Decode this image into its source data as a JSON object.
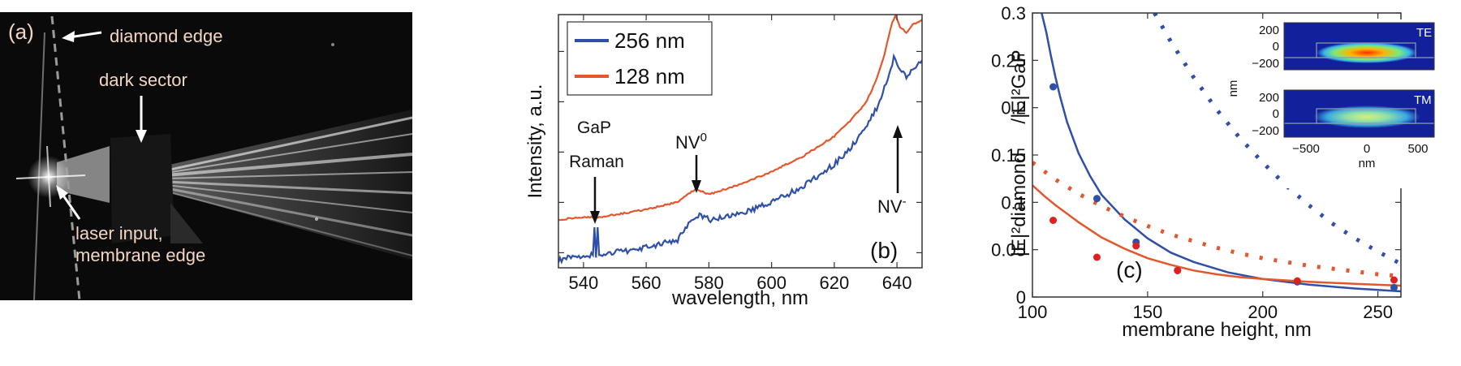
{
  "panel_a": {
    "label": "(a)",
    "annotations": {
      "diamond_edge": "diamond edge",
      "dark_sector": "dark sector",
      "laser_input_line1": "laser input,",
      "laser_input_line2": "membrane edge"
    },
    "colors": {
      "background": "#0a0a0a",
      "annotation": "#f2d6c4"
    }
  },
  "panel_b": {
    "label": "(b)",
    "annotations": {
      "gap_line1": "GaP",
      "gap_line2": "Raman",
      "nv0_main": "NV",
      "nv0_sup": "0",
      "nvm_main": "NV",
      "nvm_sup": "-"
    }
  },
  "panel_c": {
    "label": "(c)",
    "ylabel_diamond": "|E|²diamond",
    "ylabel_gap": "/|E|²GaP",
    "inset": {
      "ylabel": "nm",
      "xlabel": "nm",
      "yticks": [
        "200",
        "0",
        "−200"
      ],
      "xticks": [
        "−500",
        "0",
        "500"
      ],
      "te_label": "TE",
      "tm_label": "TM"
    }
  },
  "chart_data": [
    {
      "type": "line",
      "panel": "(b)",
      "title": "",
      "xlabel": "wavelength, nm",
      "ylabel": "Intensity, a.u.",
      "xlim": [
        532,
        648
      ],
      "ylim": [
        0,
        1
      ],
      "xticks": [
        "540",
        "560",
        "580",
        "600",
        "620",
        "640"
      ],
      "xtick_values": [
        540,
        560,
        580,
        600,
        620,
        640
      ],
      "legend_position": "top-left",
      "series": [
        {
          "name": "256 nm",
          "color": "#2f4fa8",
          "x": [
            532,
            540,
            543,
            543.5,
            544,
            544.5,
            545,
            545.5,
            546,
            550,
            560,
            570,
            574,
            577,
            580,
            585,
            590,
            600,
            610,
            620,
            625,
            630,
            634,
            637,
            639,
            641,
            643,
            645,
            648
          ],
          "y": [
            0.03,
            0.05,
            0.05,
            0.16,
            0.04,
            0.16,
            0.05,
            0.05,
            0.05,
            0.06,
            0.08,
            0.11,
            0.18,
            0.21,
            0.19,
            0.2,
            0.21,
            0.26,
            0.32,
            0.41,
            0.47,
            0.55,
            0.64,
            0.75,
            0.83,
            0.79,
            0.75,
            0.78,
            0.82
          ]
        },
        {
          "name": "128 nm",
          "color": "#e4572e",
          "x": [
            532,
            540,
            545,
            550,
            560,
            570,
            573,
            576,
            578,
            580,
            585,
            590,
            600,
            610,
            620,
            625,
            630,
            633,
            636,
            638,
            639.5,
            641,
            643,
            645,
            648
          ],
          "y": [
            0.19,
            0.2,
            0.2,
            0.21,
            0.23,
            0.26,
            0.29,
            0.31,
            0.3,
            0.29,
            0.31,
            0.33,
            0.38,
            0.44,
            0.52,
            0.58,
            0.65,
            0.73,
            0.84,
            0.95,
            1.0,
            0.95,
            0.93,
            0.96,
            0.98
          ]
        }
      ]
    },
    {
      "type": "line",
      "panel": "(c)",
      "title": "",
      "xlabel": "membrane height, nm",
      "ylabel": "|E|²diamond /|E|²GaP",
      "xlim": [
        100,
        260
      ],
      "ylim": [
        0,
        0.3
      ],
      "xticks": [
        "100",
        "150",
        "200",
        "250"
      ],
      "xtick_values": [
        100,
        150,
        200,
        250
      ],
      "yticks": [
        "0",
        "0.05",
        "0.1",
        "0.15",
        "0.2",
        "0.25",
        "0.3"
      ],
      "ytick_values": [
        0,
        0.05,
        0.1,
        0.15,
        0.2,
        0.25,
        0.3
      ],
      "grid": false,
      "series": [
        {
          "name": "TE solid",
          "style": "solid",
          "color": "#2f4fa8",
          "x": [
            104,
            106,
            108,
            110,
            112,
            115,
            120,
            125,
            130,
            140,
            150,
            160,
            170,
            185,
            200,
            220,
            240,
            260
          ],
          "y": [
            0.3,
            0.28,
            0.255,
            0.232,
            0.212,
            0.185,
            0.152,
            0.128,
            0.108,
            0.082,
            0.062,
            0.047,
            0.037,
            0.026,
            0.019,
            0.013,
            0.009,
            0.006
          ]
        },
        {
          "name": "TM solid",
          "style": "solid",
          "color": "#e4572e",
          "x": [
            100,
            105,
            110,
            115,
            120,
            130,
            140,
            150,
            160,
            170,
            180,
            190,
            200,
            220,
            240,
            260
          ],
          "y": [
            0.118,
            0.107,
            0.097,
            0.088,
            0.079,
            0.063,
            0.051,
            0.041,
            0.034,
            0.028,
            0.024,
            0.021,
            0.019,
            0.016,
            0.014,
            0.012
          ]
        },
        {
          "name": "TE dotted",
          "style": "dotted",
          "color": "#2f4fa8",
          "x": [
            153,
            160,
            170,
            180,
            190,
            200,
            210,
            220,
            230,
            240,
            250,
            260
          ],
          "y": [
            0.3,
            0.27,
            0.232,
            0.198,
            0.168,
            0.142,
            0.118,
            0.097,
            0.078,
            0.062,
            0.048,
            0.035
          ]
        },
        {
          "name": "TM dotted",
          "style": "dotted",
          "color": "#e4572e",
          "x": [
            100,
            110,
            120,
            130,
            140,
            150,
            160,
            170,
            180,
            190,
            200,
            210,
            220,
            230,
            240,
            250,
            260
          ],
          "y": [
            0.142,
            0.124,
            0.109,
            0.096,
            0.085,
            0.075,
            0.066,
            0.059,
            0.052,
            0.046,
            0.041,
            0.037,
            0.033,
            0.03,
            0.027,
            0.024,
            0.022
          ]
        },
        {
          "name": "TE points",
          "style": "markers",
          "color": "#2f4fa8",
          "x": [
            109,
            128,
            145,
            163,
            215,
            257
          ],
          "y": [
            0.222,
            0.104,
            0.058,
            0.028,
            0.016,
            0.01
          ]
        },
        {
          "name": "TM points",
          "style": "markers",
          "color": "#e02020",
          "x": [
            109,
            128,
            145,
            163,
            215,
            257
          ],
          "y": [
            0.081,
            0.042,
            0.054,
            0.028,
            0.017,
            0.018
          ]
        }
      ]
    }
  ]
}
